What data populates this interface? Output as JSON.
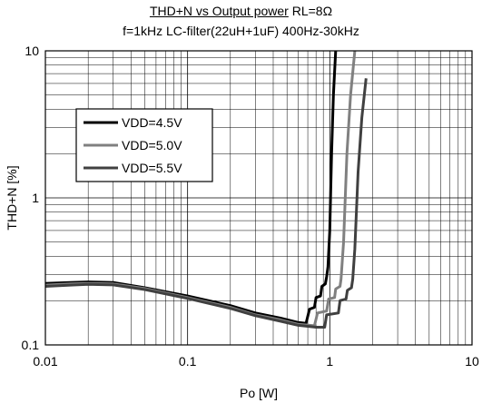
{
  "chart_data": {
    "type": "line",
    "title_underlined": "THD+N vs Output power",
    "title_rest": " RL=8Ω",
    "subtitle": "f=1kHz LC-filter(22uH+1uF) 400Hz-30kHz",
    "xlabel": "Po [W]",
    "ylabel": "THD+N [%]",
    "x_scale": "log",
    "y_scale": "log",
    "xlim": [
      0.01,
      10
    ],
    "ylim": [
      0.1,
      10
    ],
    "x_ticks": [
      0.01,
      0.1,
      1,
      10
    ],
    "x_tick_labels": [
      "0.01",
      "0.1",
      "1",
      "10"
    ],
    "y_ticks": [
      0.1,
      1,
      10
    ],
    "y_tick_labels": [
      "0.1",
      "1",
      "10"
    ],
    "grid": true,
    "legend_position": "upper-left",
    "series": [
      {
        "name": "VDD=4.5V",
        "color": "#000000",
        "points": [
          [
            0.01,
            0.262
          ],
          [
            0.015,
            0.266
          ],
          [
            0.02,
            0.268
          ],
          [
            0.03,
            0.266
          ],
          [
            0.05,
            0.245
          ],
          [
            0.1,
            0.215
          ],
          [
            0.2,
            0.185
          ],
          [
            0.3,
            0.165
          ],
          [
            0.45,
            0.152
          ],
          [
            0.6,
            0.142
          ],
          [
            0.68,
            0.14
          ],
          [
            0.72,
            0.175
          ],
          [
            0.78,
            0.18
          ],
          [
            0.8,
            0.21
          ],
          [
            0.86,
            0.215
          ],
          [
            0.88,
            0.25
          ],
          [
            0.93,
            0.26
          ],
          [
            0.95,
            0.29
          ],
          [
            0.97,
            0.34
          ],
          [
            1.0,
            0.6
          ],
          [
            1.03,
            2.0
          ],
          [
            1.06,
            5.0
          ],
          [
            1.1,
            10.0
          ]
        ]
      },
      {
        "name": "VDD=5.0V",
        "color": "#808080",
        "points": [
          [
            0.01,
            0.255
          ],
          [
            0.015,
            0.26
          ],
          [
            0.02,
            0.262
          ],
          [
            0.03,
            0.26
          ],
          [
            0.05,
            0.242
          ],
          [
            0.1,
            0.21
          ],
          [
            0.2,
            0.18
          ],
          [
            0.3,
            0.16
          ],
          [
            0.45,
            0.148
          ],
          [
            0.6,
            0.138
          ],
          [
            0.78,
            0.135
          ],
          [
            0.82,
            0.165
          ],
          [
            0.95,
            0.17
          ],
          [
            0.98,
            0.205
          ],
          [
            1.08,
            0.21
          ],
          [
            1.1,
            0.24
          ],
          [
            1.18,
            0.25
          ],
          [
            1.2,
            0.28
          ],
          [
            1.25,
            0.5
          ],
          [
            1.32,
            2.0
          ],
          [
            1.4,
            5.0
          ],
          [
            1.5,
            10.0
          ]
        ]
      },
      {
        "name": "VDD=5.5V",
        "color": "#404040",
        "points": [
          [
            0.01,
            0.25
          ],
          [
            0.015,
            0.255
          ],
          [
            0.02,
            0.258
          ],
          [
            0.03,
            0.256
          ],
          [
            0.05,
            0.238
          ],
          [
            0.1,
            0.207
          ],
          [
            0.2,
            0.177
          ],
          [
            0.3,
            0.158
          ],
          [
            0.45,
            0.145
          ],
          [
            0.6,
            0.136
          ],
          [
            0.8,
            0.132
          ],
          [
            0.92,
            0.132
          ],
          [
            0.95,
            0.16
          ],
          [
            1.15,
            0.165
          ],
          [
            1.18,
            0.2
          ],
          [
            1.3,
            0.205
          ],
          [
            1.33,
            0.235
          ],
          [
            1.42,
            0.245
          ],
          [
            1.45,
            0.28
          ],
          [
            1.5,
            0.45
          ],
          [
            1.58,
            1.5
          ],
          [
            1.68,
            3.5
          ],
          [
            1.8,
            6.5
          ]
        ]
      }
    ]
  }
}
